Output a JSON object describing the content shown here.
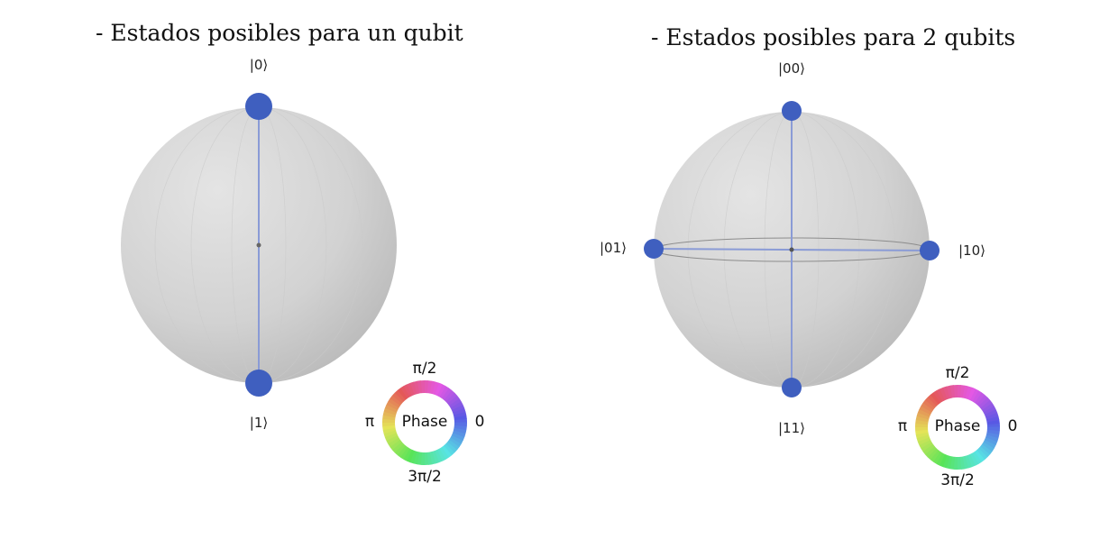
{
  "panels": [
    {
      "title": "- Estados posibles para un qubit",
      "states": [
        {
          "label": "|0⟩",
          "position": "top"
        },
        {
          "label": "|1⟩",
          "position": "bottom"
        }
      ],
      "phase_wheel": {
        "center": "Phase",
        "top": "π/2",
        "left": "π",
        "right": "0",
        "bottom": "3π/2"
      }
    },
    {
      "title": "- Estados posibles para 2 qubits",
      "states": [
        {
          "label": "|00⟩",
          "position": "top"
        },
        {
          "label": "|01⟩",
          "position": "left"
        },
        {
          "label": "|10⟩",
          "position": "right"
        },
        {
          "label": "|11⟩",
          "position": "bottom"
        }
      ],
      "phase_wheel": {
        "center": "Phase",
        "top": "π/2",
        "left": "π",
        "right": "0",
        "bottom": "3π/2"
      }
    }
  ],
  "colors": {
    "state_dot": "#3f5fbf",
    "axis_line": "#8a9bd6",
    "sphere_light": "#e2e2e2",
    "sphere_dark": "#b9b9b9"
  }
}
